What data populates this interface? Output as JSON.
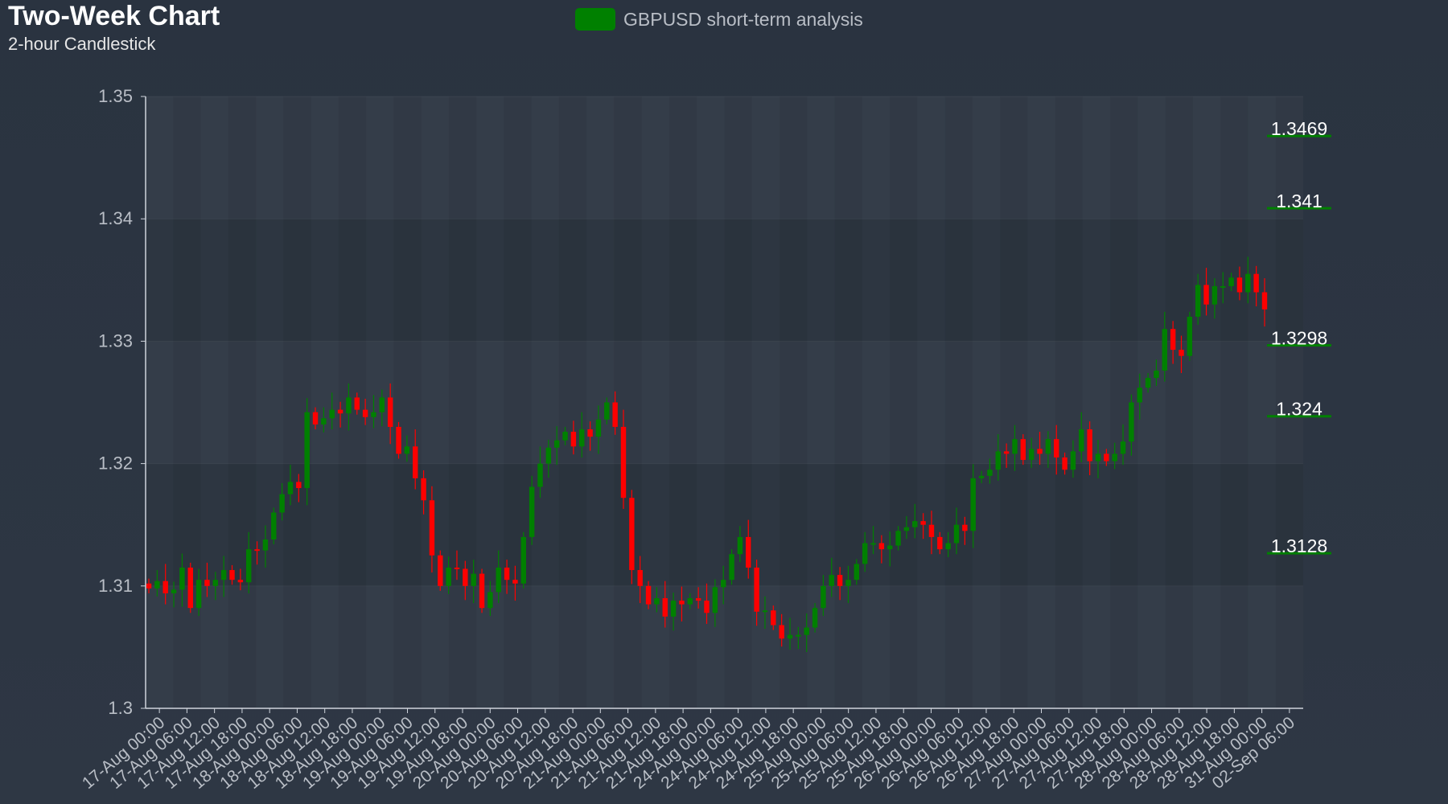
{
  "title": "Two-Week Chart",
  "subtitle": "2-hour Candlestick",
  "legend": {
    "label": "GBPUSD short-term analysis",
    "color": "#008000"
  },
  "colors": {
    "up": "#008000",
    "down": "#ff0000",
    "axis": "#cfd4dc",
    "tick": "#b9bec6"
  },
  "chart_data": {
    "type": "candlestick",
    "title": "Two-Week Chart",
    "subtitle": "2-hour Candlestick",
    "ylim": [
      1.3,
      1.35
    ],
    "yticks": [
      "1.3",
      "1.31",
      "1.32",
      "1.33",
      "1.34",
      "1.35"
    ],
    "xticks": [
      "17-Aug 00:00",
      "17-Aug 06:00",
      "17-Aug 12:00",
      "17-Aug 18:00",
      "18-Aug 00:00",
      "18-Aug 06:00",
      "18-Aug 12:00",
      "18-Aug 18:00",
      "19-Aug 00:00",
      "19-Aug 06:00",
      "19-Aug 12:00",
      "19-Aug 18:00",
      "20-Aug 00:00",
      "20-Aug 06:00",
      "20-Aug 12:00",
      "20-Aug 18:00",
      "21-Aug 00:00",
      "21-Aug 06:00",
      "21-Aug 12:00",
      "21-Aug 18:00",
      "24-Aug 00:00",
      "24-Aug 06:00",
      "24-Aug 12:00",
      "24-Aug 18:00",
      "25-Aug 00:00",
      "25-Aug 06:00",
      "25-Aug 12:00",
      "25-Aug 18:00",
      "26-Aug 00:00",
      "26-Aug 06:00",
      "26-Aug 12:00",
      "26-Aug 18:00",
      "27-Aug 00:00",
      "27-Aug 06:00",
      "27-Aug 12:00",
      "27-Aug 18:00",
      "28-Aug 00:00",
      "28-Aug 06:00",
      "28-Aug 12:00",
      "28-Aug 18:00",
      "31-Aug 00:00",
      "02-Sep 06:00"
    ],
    "levels": [
      "1.3469",
      "1.341",
      "1.3298",
      "1.324",
      "1.3128"
    ],
    "closes": [
      1.3098,
      1.3104,
      1.3094,
      1.3097,
      1.3115,
      1.3082,
      1.3105,
      1.31,
      1.3105,
      1.3113,
      1.3105,
      1.3103,
      1.313,
      1.3129,
      1.3138,
      1.316,
      1.3175,
      1.3185,
      1.318,
      1.3242,
      1.3232,
      1.3237,
      1.3244,
      1.3241,
      1.3254,
      1.3244,
      1.3238,
      1.3242,
      1.3254,
      1.323,
      1.3208,
      1.3214,
      1.3188,
      1.317,
      1.3125,
      1.31,
      1.3115,
      1.3114,
      1.31,
      1.311,
      1.3082,
      1.3095,
      1.3115,
      1.3105,
      1.3102,
      1.314,
      1.3181,
      1.32,
      1.3213,
      1.3219,
      1.3226,
      1.3214,
      1.3228,
      1.3222,
      1.3236,
      1.325,
      1.323,
      1.3172,
      1.3113,
      1.31,
      1.3085,
      1.309,
      1.3075,
      1.3088,
      1.3085,
      1.309,
      1.3088,
      1.3078,
      1.3099,
      1.3105,
      1.3126,
      1.314,
      1.3115,
      1.3079,
      1.308,
      1.3068,
      1.3057,
      1.306,
      1.306,
      1.3066,
      1.3082,
      1.31,
      1.3109,
      1.31,
      1.3105,
      1.3118,
      1.3135,
      1.3135,
      1.313,
      1.3133,
      1.3145,
      1.3148,
      1.3153,
      1.315,
      1.314,
      1.313,
      1.3135,
      1.315,
      1.3145,
      1.3188,
      1.319,
      1.3195,
      1.321,
      1.3208,
      1.322,
      1.3203,
      1.3212,
      1.3208,
      1.322,
      1.3205,
      1.3195,
      1.321,
      1.3228,
      1.3202,
      1.3208,
      1.3202,
      1.3208,
      1.3218,
      1.325,
      1.3262,
      1.327,
      1.3276,
      1.331,
      1.3293,
      1.3288,
      1.332,
      1.3346,
      1.333,
      1.3345,
      1.3345,
      1.3352,
      1.334,
      1.3355,
      1.334,
      1.3326
    ]
  }
}
